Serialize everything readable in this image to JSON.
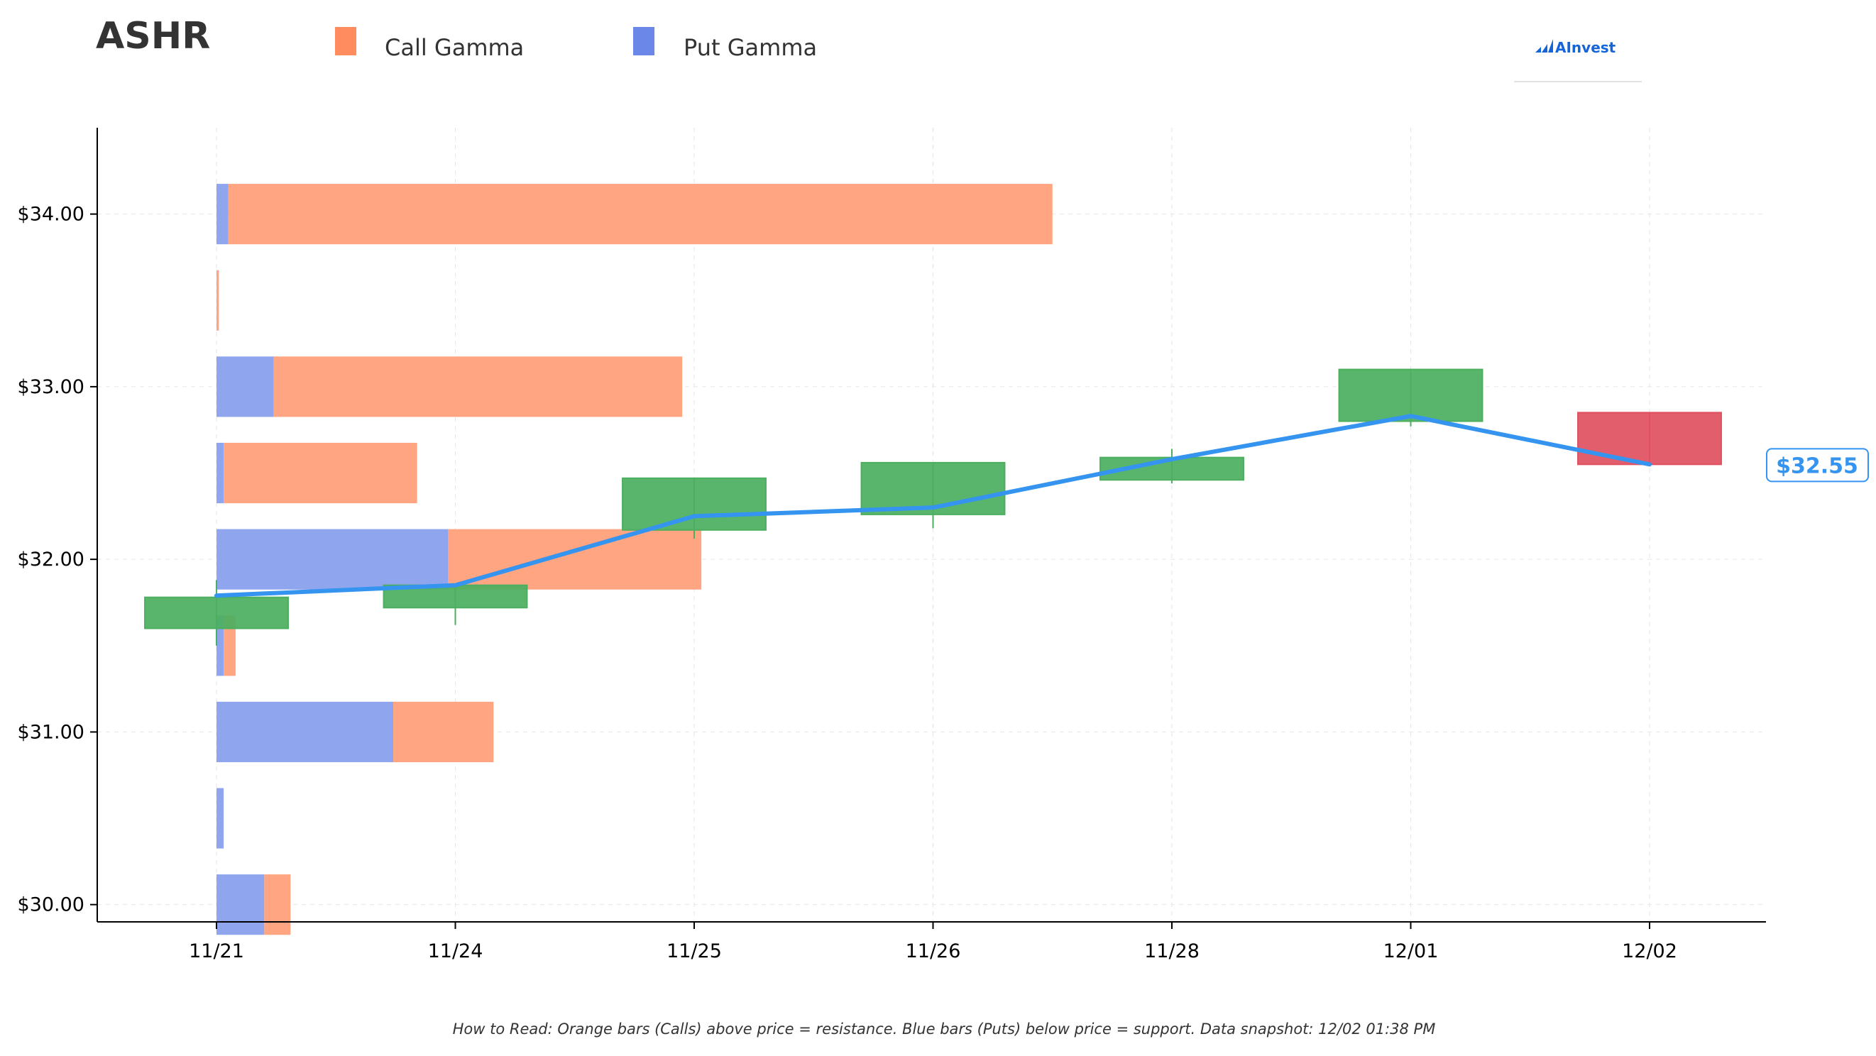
{
  "header": {
    "ticker": "ASHR",
    "brand": "AInvest"
  },
  "legend": [
    {
      "label": "Call Gamma",
      "color": "#ff8c5f"
    },
    {
      "label": "Put Gamma",
      "color": "#6b88e8"
    }
  ],
  "footnote": "How to Read: Orange bars (Calls) above price = resistance. Blue bars (Puts) below price = support. Data snapshot: 12/02 01:38 PM",
  "last_price_label": "$32.55",
  "colors": {
    "call": "#ffa582",
    "put": "#8fa5ee",
    "up": "#4caf5f",
    "down": "#e0505f",
    "line": "#3494f0",
    "brand": "#1565d8"
  },
  "chart_data": {
    "type": "bar",
    "title": "ASHR",
    "x_categories": [
      "11/21",
      "11/24",
      "11/25",
      "11/26",
      "11/28",
      "12/01",
      "12/02"
    ],
    "ylim": [
      29.9,
      34.5
    ],
    "y_ticks": [
      "$30.00",
      "$31.00",
      "$32.00",
      "$33.00",
      "$34.00"
    ],
    "y_tick_values": [
      30,
      31,
      32,
      33,
      34
    ],
    "grid": true,
    "gamma": {
      "strikes": [
        34.0,
        33.5,
        33.0,
        32.5,
        32.0,
        31.5,
        31.0,
        30.5,
        30.0
      ],
      "put_gamma_days": [
        0.05,
        0.0,
        0.24,
        0.03,
        0.97,
        0.03,
        0.74,
        0.03,
        0.2
      ],
      "call_gamma_days": [
        3.45,
        0.01,
        1.71,
        0.81,
        1.06,
        0.05,
        0.42,
        0.0,
        0.11
      ]
    },
    "candles": [
      {
        "date": "11/21",
        "open": 31.6,
        "close": 31.78,
        "high": 31.88,
        "low": 31.5
      },
      {
        "date": "11/24",
        "open": 31.72,
        "close": 31.85,
        "high": 31.85,
        "low": 31.62
      },
      {
        "date": "11/25",
        "open": 32.17,
        "close": 32.47,
        "high": 32.47,
        "low": 32.12
      },
      {
        "date": "11/26",
        "open": 32.26,
        "close": 32.56,
        "high": 32.56,
        "low": 32.18
      },
      {
        "date": "11/28",
        "open": 32.46,
        "close": 32.59,
        "high": 32.64,
        "low": 32.44
      },
      {
        "date": "12/01",
        "open": 32.8,
        "close": 33.1,
        "high": 33.1,
        "low": 32.77
      },
      {
        "date": "12/02",
        "open": 32.85,
        "close": 32.55,
        "high": 32.85,
        "low": 32.55
      }
    ],
    "close_line": [
      31.79,
      31.85,
      32.25,
      32.3,
      32.58,
      32.83,
      32.55
    ]
  }
}
